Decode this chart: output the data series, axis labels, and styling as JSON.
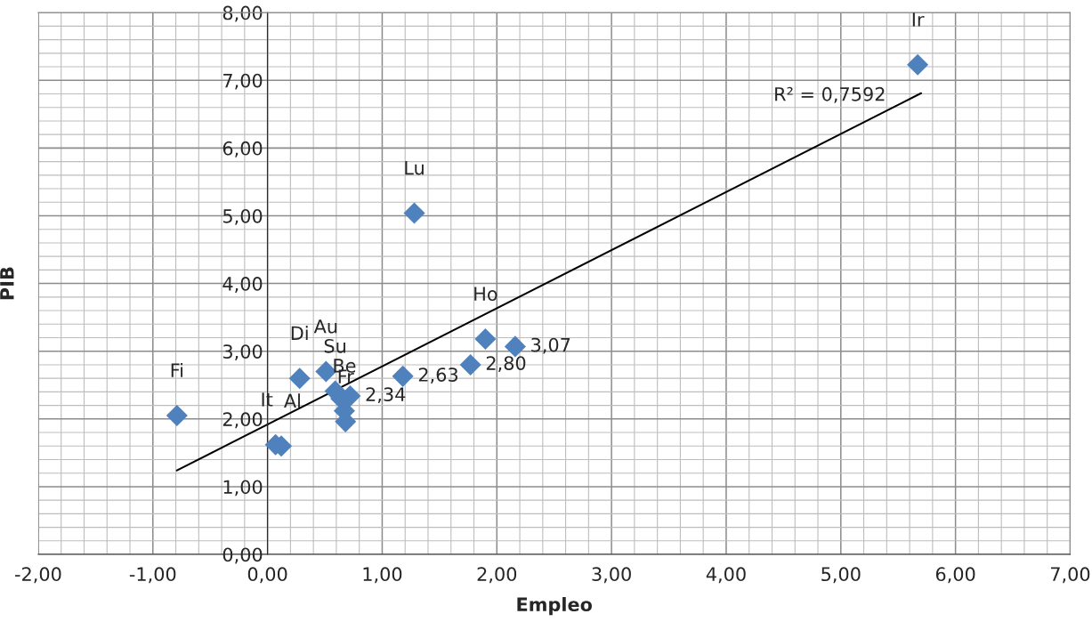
{
  "chart_data": {
    "type": "scatter",
    "xlabel": "Empleo",
    "ylabel": "PIB",
    "xlim": [
      -2,
      7
    ],
    "ylim": [
      0,
      8
    ],
    "xticks": [
      {
        "value": -2,
        "label": "-2,00"
      },
      {
        "value": -1,
        "label": "-1,00"
      },
      {
        "value": 0,
        "label": "0,00"
      },
      {
        "value": 1,
        "label": "1,00"
      },
      {
        "value": 2,
        "label": "2,00"
      },
      {
        "value": 3,
        "label": "3,00"
      },
      {
        "value": 4,
        "label": "4,00"
      },
      {
        "value": 5,
        "label": "5,00"
      },
      {
        "value": 6,
        "label": "6,00"
      },
      {
        "value": 7,
        "label": "7,00"
      }
    ],
    "yticks": [
      {
        "value": 0,
        "label": "0,00"
      },
      {
        "value": 1,
        "label": "1,00"
      },
      {
        "value": 2,
        "label": "2,00"
      },
      {
        "value": 3,
        "label": "3,00"
      },
      {
        "value": 4,
        "label": "4,00"
      },
      {
        "value": 5,
        "label": "5,00"
      },
      {
        "value": 6,
        "label": "6,00"
      },
      {
        "value": 7,
        "label": "7,00"
      },
      {
        "value": 8,
        "label": "8,00"
      }
    ],
    "grid": true,
    "marker": "diamond",
    "series": [
      {
        "color": "#4f81bd",
        "x": [
          -0.79,
          5.67,
          1.28,
          1.9,
          0.28,
          0.51,
          0.59,
          0.67,
          0.68,
          0.07,
          0.12,
          0.64
        ],
        "values": [
          2.05,
          7.23,
          5.04,
          3.18,
          2.6,
          2.7,
          2.41,
          2.12,
          1.96,
          1.62,
          1.6,
          2.3
        ],
        "value_labels": [
          "Fi",
          "Ir",
          "Lu",
          "Ho",
          "Di",
          "Au",
          "Su",
          "Be",
          "Fr",
          "It",
          "Al",
          null
        ]
      },
      {
        "color": "#4f81bd",
        "x": [
          2.16,
          1.77,
          1.18,
          0.72
        ],
        "values": [
          3.07,
          2.8,
          2.63,
          2.34
        ],
        "value_labels": [
          "3,07",
          "2,80",
          "2,63",
          "2,34"
        ]
      },
      {
        "type": "line",
        "marker": "none",
        "color": "#000000",
        "x": [
          -0.79,
          5.7
        ],
        "values": [
          1.24,
          6.81
        ]
      }
    ],
    "annotations": [
      "R² = 0,7592"
    ]
  }
}
